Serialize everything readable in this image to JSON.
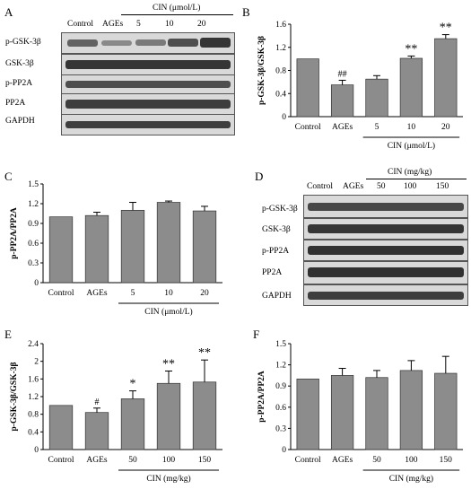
{
  "panels": {
    "A": {
      "label": "A",
      "cin_label": "CIN (μmol/L)",
      "lanes": [
        "Control",
        "AGEs",
        "5",
        "10",
        "20"
      ],
      "rows": [
        "p-GSK-3β",
        "GSK-3β",
        "p-PP2A",
        "PP2A",
        "GAPDH"
      ]
    },
    "D": {
      "label": "D",
      "cin_label": "CIN (mg/kg)",
      "lanes": [
        "Control",
        "AGEs",
        "50",
        "100",
        "150"
      ],
      "rows": [
        "p-GSK-3β",
        "GSK-3β",
        "p-PP2A",
        "PP2A",
        "GAPDH"
      ]
    }
  },
  "chart_data": [
    {
      "panel": "B",
      "type": "bar",
      "categories": [
        "Control",
        "AGEs",
        "5",
        "10",
        "20"
      ],
      "values": [
        1.0,
        0.55,
        0.65,
        1.01,
        1.35
      ],
      "errors": [
        0,
        0.08,
        0.06,
        0.04,
        0.07
      ],
      "annotations": [
        "",
        "##",
        "",
        "**",
        "**"
      ],
      "ylabel": "p-GSK-3β/GSK-3β",
      "xgroup_label": "CIN (μmol/L)",
      "ylim": [
        0,
        1.6
      ],
      "yticks": [
        "0",
        "0.4",
        "0.8",
        "1.2",
        "1.6"
      ],
      "ytick_values": [
        0,
        0.4,
        0.8,
        1.2,
        1.6
      ]
    },
    {
      "panel": "C",
      "type": "bar",
      "categories": [
        "Control",
        "AGEs",
        "5",
        "10",
        "20"
      ],
      "values": [
        1.0,
        1.02,
        1.1,
        1.22,
        1.09
      ],
      "errors": [
        0,
        0.05,
        0.12,
        0.02,
        0.07
      ],
      "annotations": [
        "",
        "",
        "",
        "",
        ""
      ],
      "ylabel": "p-PP2A/PP2A",
      "xgroup_label": "CIN (μmol/L)",
      "ylim": [
        0,
        1.5
      ],
      "yticks": [
        "0",
        "0.3",
        "0.6",
        "0.9",
        "1.2",
        "1.5"
      ],
      "ytick_values": [
        0,
        0.3,
        0.6,
        0.9,
        1.2,
        1.5
      ]
    },
    {
      "panel": "E",
      "type": "bar",
      "categories": [
        "Control",
        "AGEs",
        "50",
        "100",
        "150"
      ],
      "values": [
        1.0,
        0.84,
        1.15,
        1.5,
        1.53
      ],
      "errors": [
        0,
        0.1,
        0.18,
        0.28,
        0.5
      ],
      "annotations": [
        "",
        "#",
        "*",
        "**",
        "**"
      ],
      "ylabel": "p-GSK-3β/GSK-3β",
      "xgroup_label": "CIN (mg/kg)",
      "ylim": [
        0,
        2.4
      ],
      "yticks": [
        "0",
        "0.4",
        "0.8",
        "1.2",
        "1.6",
        "2",
        "2.4"
      ],
      "ytick_values": [
        0,
        0.4,
        0.8,
        1.2,
        1.6,
        2.0,
        2.4
      ]
    },
    {
      "panel": "F",
      "type": "bar",
      "categories": [
        "Control",
        "AGEs",
        "50",
        "100",
        "150"
      ],
      "values": [
        1.0,
        1.05,
        1.02,
        1.12,
        1.08
      ],
      "errors": [
        0,
        0.1,
        0.1,
        0.14,
        0.24
      ],
      "annotations": [
        "",
        "",
        "",
        "",
        ""
      ],
      "ylabel": "p-PP2A/PP2A",
      "xgroup_label": "CIN (mg/kg)",
      "ylim": [
        0,
        1.5
      ],
      "yticks": [
        "0",
        "0.3",
        "0.6",
        "0.9",
        "1.2",
        "1.5"
      ],
      "ytick_values": [
        0,
        0.3,
        0.6,
        0.9,
        1.2,
        1.5
      ]
    }
  ],
  "colors": {
    "bar": "#8c8c8c",
    "band": "#2b2b2b",
    "blot_bg": "#d6d6d6"
  }
}
